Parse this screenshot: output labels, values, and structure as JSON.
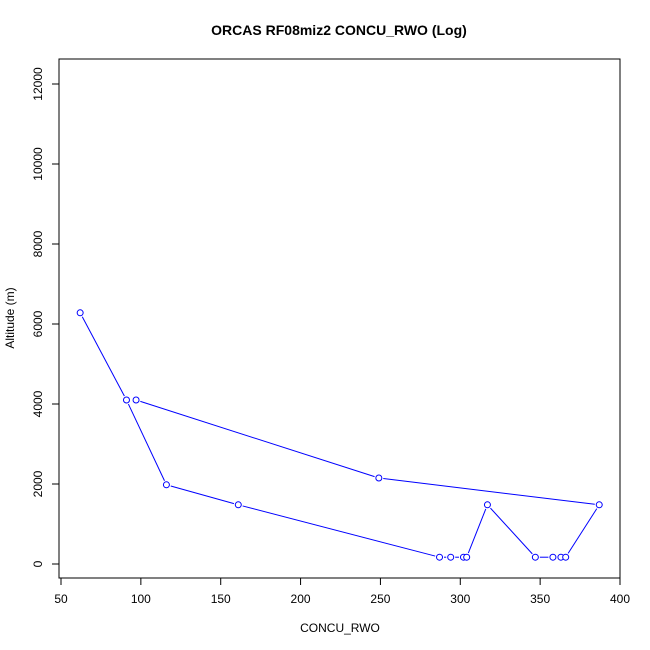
{
  "chart_data": {
    "type": "line",
    "title": "ORCAS RF08miz2 CONCU_RWO (Log)",
    "xlabel": "CONCU_RWO",
    "ylabel": "Altitude (m)",
    "xlim": [
      50,
      400
    ],
    "ylim": [
      0,
      12500
    ],
    "x_ticks": [
      50,
      100,
      150,
      200,
      250,
      300,
      350,
      400
    ],
    "y_ticks": [
      0,
      2000,
      4000,
      6000,
      8000,
      10000,
      12000
    ],
    "grid": false,
    "legend": "none",
    "color": "#0000ff",
    "series": [
      {
        "x": [
          62,
          91,
          116,
          161,
          287,
          294,
          302,
          304,
          317,
          347,
          358,
          363,
          366,
          387,
          249,
          97
        ],
        "y": [
          6280,
          4100,
          1980,
          1480,
          170,
          170,
          170,
          170,
          1480,
          170,
          170,
          170,
          170,
          1480,
          2150,
          4100
        ]
      }
    ]
  }
}
